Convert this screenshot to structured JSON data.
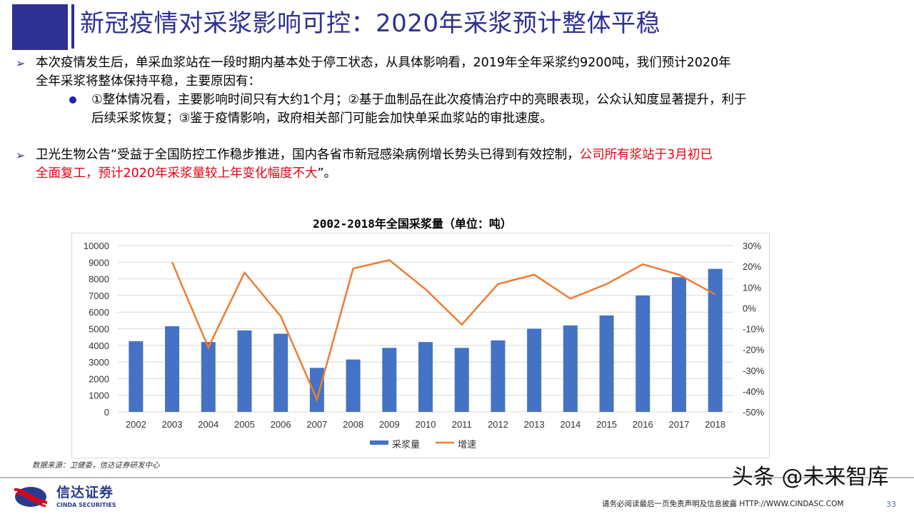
{
  "header": {
    "title": "新冠疫情对采浆影响可控：2020年采浆预计整体平稳"
  },
  "bullets": [
    {
      "lines": [
        "本次疫情发生后，单采血浆站在一段时期内基本处于停工状态，从具体影响看，2019年全年采浆约9200吨，我们预计2020年",
        "全年采浆将整体保持平稳，主要原因有："
      ]
    },
    {
      "sub": true,
      "lines": [
        "①整体情况看，主要影响时间只有大约1个月；②基于血制品在此次疫情治疗中的亮眼表现，公众认知度显著提升，利于",
        "后续采浆恢复；③鉴于疫情影响，政府相关部门可能会加快单采血浆站的审批速度。"
      ]
    },
    {
      "line1_a": "卫光生物公告“受益于全国防控工作稳步推进，国内各省市新冠感染病例增长势头已得到有效控制，",
      "line1_red": "公司所有浆站于3月初已",
      "line2_red": "全面复工，预计2020年采浆量较上年变化幅度不大",
      "line2_b": "”。"
    }
  ],
  "chart_data": {
    "type": "bar+line",
    "title": "2002-2018年全国采浆量（单位：吨）",
    "categories": [
      "2002",
      "2003",
      "2004",
      "2005",
      "2006",
      "2007",
      "2008",
      "2009",
      "2010",
      "2011",
      "2012",
      "2013",
      "2014",
      "2015",
      "2016",
      "2017",
      "2018"
    ],
    "series": [
      {
        "name": "采浆量",
        "type": "bar",
        "axis": "left",
        "color": "#4472c4",
        "values": [
          4250,
          5150,
          4200,
          4900,
          4700,
          2650,
          3150,
          3850,
          4200,
          3850,
          4300,
          5000,
          5200,
          5800,
          7000,
          8100,
          8600
        ]
      },
      {
        "name": "增速",
        "type": "line",
        "axis": "right",
        "color": "#ed7d31",
        "values": [
          null,
          22,
          -19,
          17,
          -4,
          -44,
          19,
          23,
          9,
          -8,
          11.5,
          16,
          4.5,
          11.5,
          21,
          16,
          6.5
        ]
      }
    ],
    "ylim": [
      0,
      10000
    ],
    "yticks": [
      "0",
      "1000",
      "2000",
      "3000",
      "4000",
      "5000",
      "6000",
      "7000",
      "8000",
      "9000",
      "10000"
    ],
    "y2lim": [
      -50,
      30
    ],
    "y2ticks": [
      "-50%",
      "-40%",
      "-30%",
      "-20%",
      "-10%",
      "0%",
      "10%",
      "20%",
      "30%"
    ],
    "grid": true,
    "legend": "bottom"
  },
  "source": "数据来源：卫健委，信达证券研发中心",
  "footer": {
    "logo_cn": "信达证券",
    "logo_en": "CINDA SECURITIES",
    "disclaimer": "请务必阅读最后一页免责声明及信息披露   HTTP://WWW.CINDASC.COM",
    "page": "33",
    "watermark": "头条 @未来智库"
  }
}
